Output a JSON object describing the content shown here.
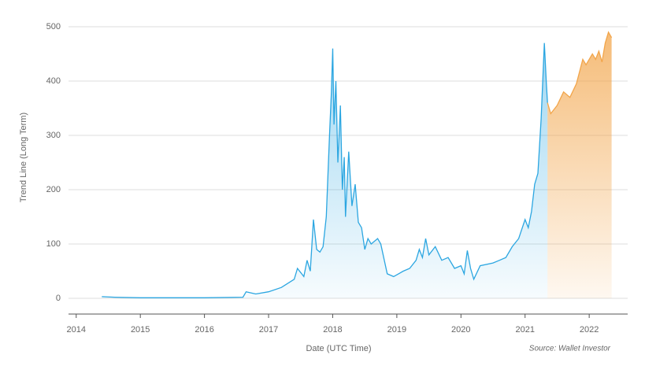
{
  "chart_data": {
    "type": "area",
    "y_label": "Trend Line (Long Term)",
    "x_label": "Date (UTC Time)",
    "source": "Source: Wallet Investor",
    "xlim": [
      2013.88,
      2022.6
    ],
    "xticks": [
      2014,
      2015,
      2016,
      2017,
      2018,
      2019,
      2020,
      2021,
      2022
    ],
    "ylim": [
      -29,
      500
    ],
    "yticks": [
      0,
      100,
      200,
      300,
      400,
      500
    ],
    "grid": true,
    "series": [
      {
        "color": "#2ba6e1",
        "x": [
          2014.4,
          2014.6,
          2015,
          2016,
          2016.6,
          2016.65,
          2016.8,
          2017,
          2017.2,
          2017.4,
          2017.45,
          2017.55,
          2017.6,
          2017.65,
          2017.7,
          2017.75,
          2017.8,
          2017.85,
          2017.9,
          2017.95,
          2017.98,
          2018.0,
          2018.02,
          2018.05,
          2018.08,
          2018.1,
          2018.12,
          2018.15,
          2018.18,
          2018.2,
          2018.25,
          2018.3,
          2018.35,
          2018.4,
          2018.45,
          2018.5,
          2018.55,
          2018.6,
          2018.7,
          2018.75,
          2018.85,
          2018.95,
          2019.1,
          2019.2,
          2019.3,
          2019.35,
          2019.4,
          2019.45,
          2019.5,
          2019.6,
          2019.7,
          2019.8,
          2019.9,
          2020.0,
          2020.05,
          2020.1,
          2020.15,
          2020.2,
          2020.3,
          2020.5,
          2020.6,
          2020.7,
          2020.8,
          2020.9,
          2021.0,
          2021.05,
          2021.1,
          2021.15,
          2021.2,
          2021.25,
          2021.3,
          2021.33,
          2021.35
        ],
        "values": [
          3,
          2,
          1,
          1,
          2,
          12,
          8,
          12,
          20,
          35,
          55,
          40,
          70,
          50,
          145,
          90,
          85,
          95,
          150,
          300,
          380,
          460,
          320,
          400,
          250,
          300,
          355,
          200,
          260,
          150,
          270,
          170,
          210,
          140,
          130,
          90,
          110,
          100,
          110,
          100,
          45,
          40,
          50,
          55,
          70,
          90,
          75,
          110,
          80,
          95,
          70,
          75,
          55,
          60,
          45,
          88,
          55,
          35,
          60,
          65,
          70,
          75,
          95,
          110,
          145,
          130,
          160,
          210,
          230,
          330,
          470,
          400,
          360
        ]
      },
      {
        "color": "#f2a54a",
        "x": [
          2021.35,
          2021.4,
          2021.5,
          2021.6,
          2021.7,
          2021.8,
          2021.9,
          2021.95,
          2022.05,
          2022.1,
          2022.15,
          2022.2,
          2022.25,
          2022.3,
          2022.35
        ],
        "values": [
          360,
          340,
          355,
          380,
          370,
          395,
          440,
          430,
          450,
          440,
          455,
          435,
          470,
          490,
          480
        ]
      }
    ]
  }
}
